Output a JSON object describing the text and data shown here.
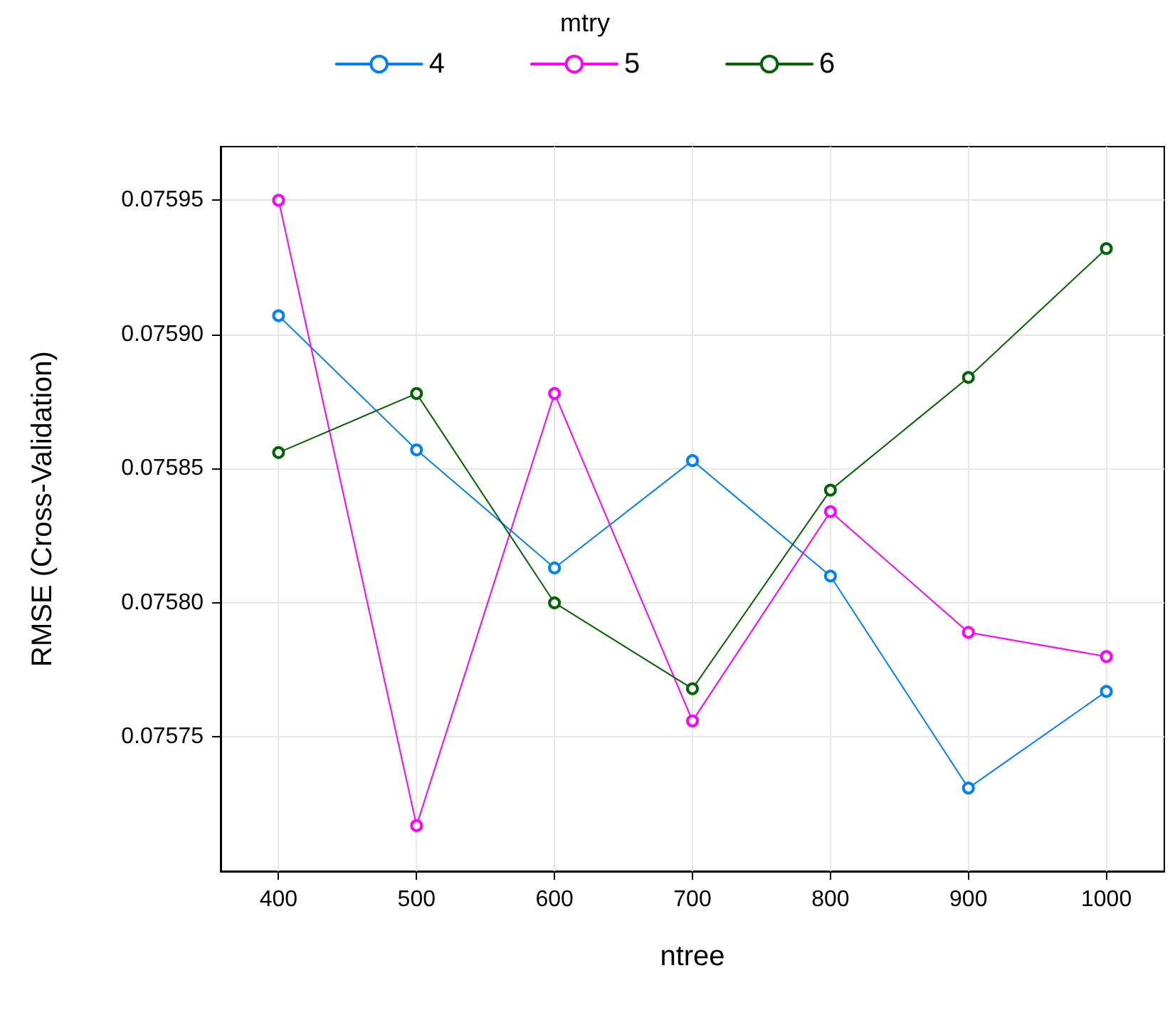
{
  "chart_data": {
    "type": "line",
    "xlabel": "ntree",
    "ylabel": "RMSE (Cross-Validation)",
    "legend_title": "mtry",
    "x": [
      400,
      500,
      600,
      700,
      800,
      900,
      1000
    ],
    "series": [
      {
        "name": "4",
        "color": "#0080ff",
        "values": [
          0.075907,
          0.075857,
          0.075813,
          0.075853,
          0.07581,
          0.075731,
          0.075767
        ]
      },
      {
        "name": "5",
        "color": "#ff00ff",
        "values": [
          0.07595,
          0.075717,
          0.075878,
          0.075756,
          0.075834,
          0.075789,
          0.07578
        ]
      },
      {
        "name": "6",
        "color": "#006400",
        "values": [
          0.075856,
          0.075878,
          0.0758,
          0.075768,
          0.075842,
          0.075884,
          0.075932
        ]
      }
    ],
    "xlim": [
      358,
      1042
    ],
    "xticks": [
      400,
      500,
      600,
      700,
      800,
      900,
      1000
    ],
    "ylim": [
      0.0757,
      0.07597
    ],
    "yticks": [
      {
        "value": 0.07575,
        "label": "0.07575"
      },
      {
        "value": 0.0758,
        "label": "0.07580"
      },
      {
        "value": 0.07585,
        "label": "0.07585"
      },
      {
        "value": 0.0759,
        "label": "0.07590"
      },
      {
        "value": 0.07595,
        "label": "0.07595"
      }
    ],
    "grid": true,
    "legend": "top",
    "marker": "circle",
    "line_style": "solid"
  }
}
